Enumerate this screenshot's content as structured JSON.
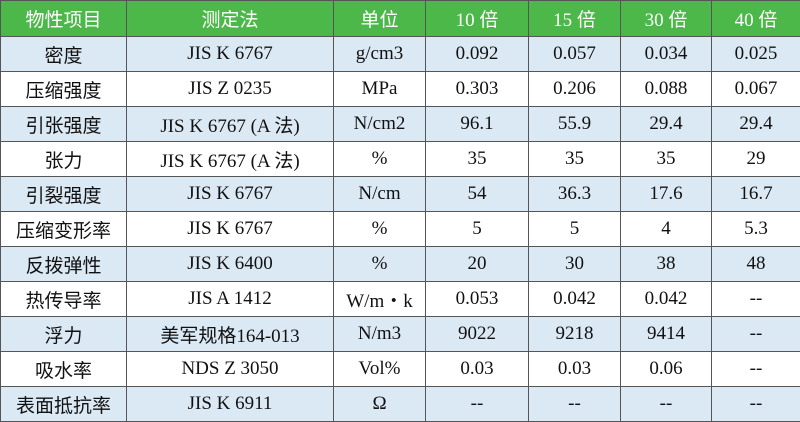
{
  "table": {
    "header": [
      "物性项目",
      "测定法",
      "单位",
      "10 倍",
      "15 倍",
      "30 倍",
      "40 倍"
    ],
    "rows": [
      [
        "密度",
        "JIS K 6767",
        "g/cm3",
        "0.092",
        "0.057",
        "0.034",
        "0.025"
      ],
      [
        "压缩强度",
        "JIS Z 0235",
        "MPa",
        "0.303",
        "0.206",
        "0.088",
        "0.067"
      ],
      [
        "引张强度",
        "JIS K 6767 (A 法)",
        "N/cm2",
        "96.1",
        "55.9",
        "29.4",
        "29.4"
      ],
      [
        "张力",
        "JIS K 6767 (A 法)",
        "%",
        "35",
        "35",
        "35",
        "29"
      ],
      [
        "引裂强度",
        "JIS K 6767",
        "N/cm",
        "54",
        "36.3",
        "17.6",
        "16.7"
      ],
      [
        "压缩变形率",
        "JIS K 6767",
        "%",
        "5",
        "5",
        "4",
        "5.3"
      ],
      [
        "反拨弹性",
        "JIS K 6400",
        "%",
        "20",
        "30",
        "38",
        "48"
      ],
      [
        "热传导率",
        "JIS A 1412",
        "W/m・k",
        "0.053",
        "0.042",
        "0.042",
        "--"
      ],
      [
        "浮力",
        "美军规格164-013",
        "N/m3",
        "9022",
        "9218",
        "9414",
        "--"
      ],
      [
        "吸水率",
        "NDS Z 3050",
        "Vol%",
        "0.03",
        "0.03",
        "0.06",
        "--"
      ],
      [
        "表面抵抗率",
        "JIS K 6911",
        "Ω",
        "--",
        "--",
        "--",
        "--"
      ]
    ]
  }
}
